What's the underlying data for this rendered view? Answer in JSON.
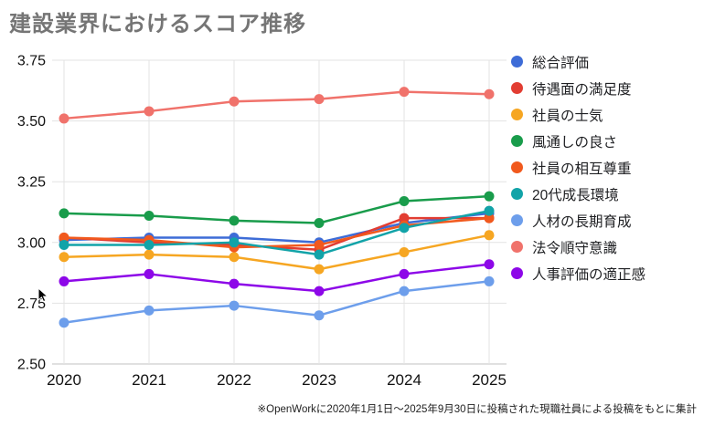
{
  "title": "建設業界におけるスコア推移",
  "footnote": "※OpenWorkに2020年1月1日〜2025年9月30日に投稿された現職社員による投稿をもとに集計",
  "chart_data": {
    "type": "line",
    "x_labels": [
      "2020",
      "2021",
      "2022",
      "2023",
      "2024",
      "2025"
    ],
    "ylim": [
      2.5,
      3.75
    ],
    "yticks": [
      3.75,
      3.5,
      3.25,
      3.0,
      2.75,
      2.5
    ],
    "ytick_labels": [
      "3.75",
      "3.50",
      "3.25",
      "3.00",
      "2.75",
      "2.50"
    ],
    "grid": true,
    "legend_position": "right",
    "title": "建設業界におけるスコア推移",
    "xlabel": "",
    "ylabel": "",
    "series": [
      {
        "name": "総合評価",
        "color": "#3D6CD7",
        "values": [
          3.01,
          3.02,
          3.02,
          3.0,
          3.08,
          3.12
        ]
      },
      {
        "name": "待遇面の満足度",
        "color": "#E23D32",
        "values": [
          3.02,
          3.0,
          2.99,
          2.97,
          3.1,
          3.1
        ]
      },
      {
        "name": "社員の士気",
        "color": "#F6A622",
        "values": [
          2.94,
          2.95,
          2.94,
          2.89,
          2.96,
          3.03
        ]
      },
      {
        "name": "風通しの良さ",
        "color": "#199C4B",
        "values": [
          3.12,
          3.11,
          3.09,
          3.08,
          3.17,
          3.19
        ]
      },
      {
        "name": "社員の相互尊重",
        "color": "#F1591D",
        "values": [
          3.02,
          3.01,
          2.98,
          2.99,
          3.07,
          3.1
        ]
      },
      {
        "name": "20代成長環境",
        "color": "#12A3A8",
        "values": [
          2.99,
          2.99,
          3.0,
          2.95,
          3.06,
          3.13
        ]
      },
      {
        "name": "人材の長期育成",
        "color": "#6D9EEB",
        "values": [
          2.67,
          2.72,
          2.74,
          2.7,
          2.8,
          2.84
        ]
      },
      {
        "name": "法令順守意識",
        "color": "#F0726B",
        "values": [
          3.51,
          3.54,
          3.58,
          3.59,
          3.62,
          3.61
        ]
      },
      {
        "name": "人事評価の適正感",
        "color": "#8D07E8",
        "values": [
          2.84,
          2.87,
          2.83,
          2.8,
          2.87,
          2.91
        ]
      }
    ],
    "style": {
      "gridline_color": "#e3e3e3",
      "axis_line_color": "#c2c2c2",
      "tick_label_color": "#111111",
      "title_color": "#757575",
      "legend_text_color": "#202124"
    }
  }
}
